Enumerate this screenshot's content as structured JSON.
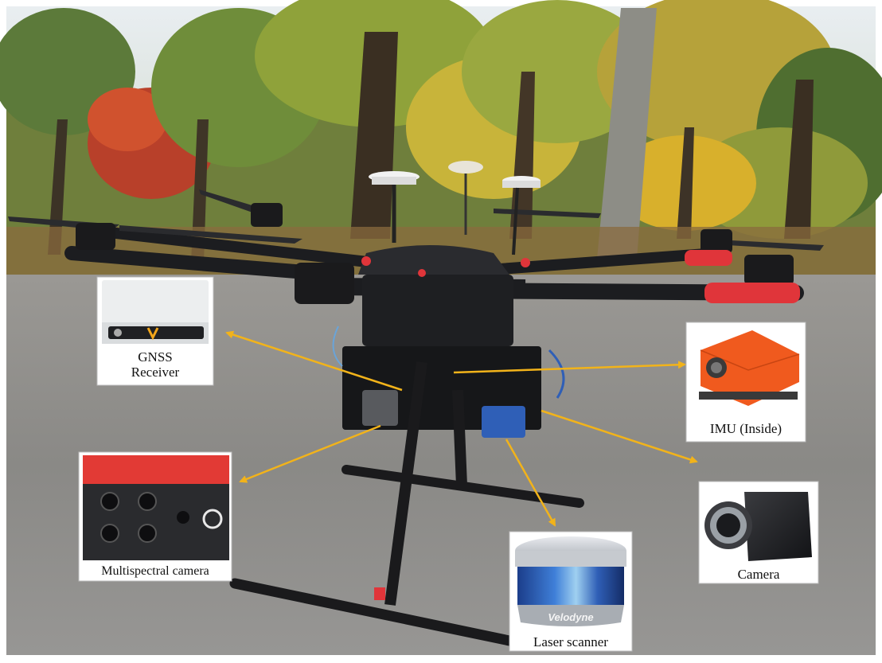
{
  "image": {
    "subject": "UAV hexacopter sensor platform with labelled sensors",
    "palette": {
      "arrow": "#f2b31a",
      "frame_black": "#1c1d20",
      "motor_red": "#e0353a",
      "imu_orange": "#f05a1e",
      "multispectral_red": "#e23a35",
      "lidar_blue": "#2f5fb7",
      "asphalt": "#8b8b8b",
      "foliage_yellow": "#d8b02c"
    }
  },
  "callouts": {
    "gnss": "GNSS\nReceiver",
    "imu": "IMU (Inside)",
    "multispectral": "Multispectral camera",
    "camera": "Camera",
    "lidar": "Laser scanner",
    "lidar_brand": "Velodyne"
  }
}
